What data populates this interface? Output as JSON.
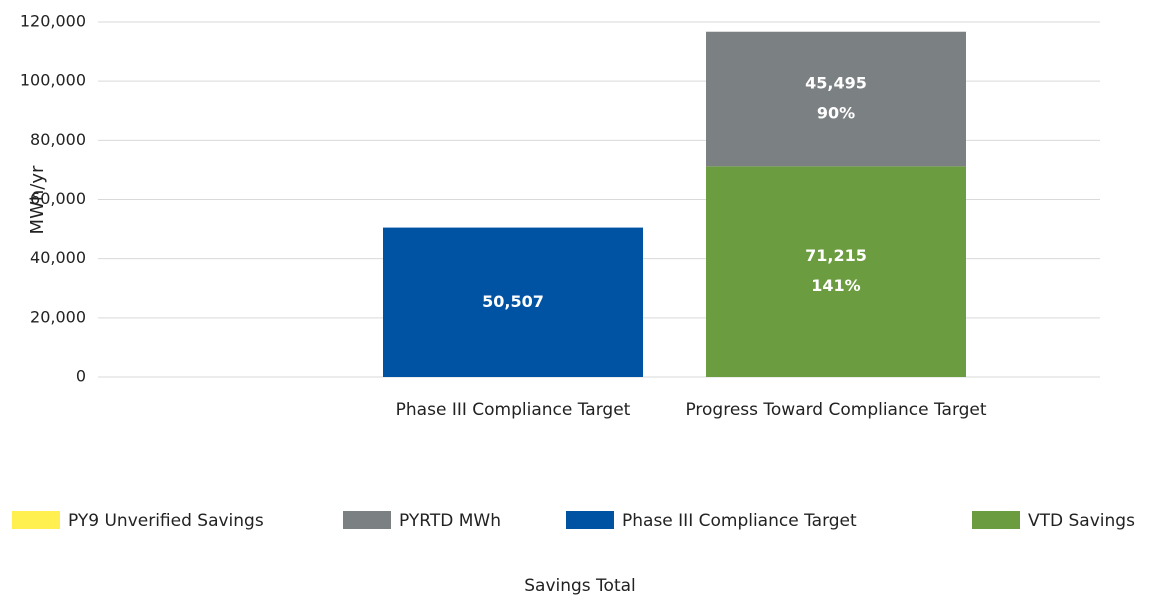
{
  "chart_data": {
    "type": "stacked_bar",
    "y_label": "MWh/yr",
    "x_label": "Savings Total",
    "categories": [
      "Phase III Compliance Target",
      "Progress Toward Compliance Target"
    ],
    "series": [
      {
        "name": "PY9 Unverified Savings",
        "color": "#ffef4f",
        "values": [
          null,
          null
        ]
      },
      {
        "name": "PYRTD MWh",
        "color": "#7b8083",
        "values": [
          null,
          45495
        ],
        "value_labels": [
          null,
          "45,495"
        ],
        "share_labels": [
          null,
          "90%"
        ]
      },
      {
        "name": "Phase III Compliance Target",
        "color": "#0052a2",
        "values": [
          50507,
          null
        ],
        "value_labels": [
          "50,507",
          null
        ]
      },
      {
        "name": "VTD Savings",
        "color": "#6c9c40",
        "values": [
          null,
          71215
        ],
        "value_labels": [
          null,
          "71,215"
        ],
        "share_labels": [
          null,
          "141%"
        ]
      }
    ],
    "ylim": [
      0,
      120000
    ],
    "yticks": [
      0,
      {
        "value": 20000,
        "label": "20,000"
      },
      {
        "value": 40000,
        "label": "40,000"
      },
      {
        "value": 60000,
        "label": "60,000"
      },
      {
        "value": 80000,
        "label": "80,000"
      },
      {
        "value": 100000,
        "label": "100,000"
      },
      {
        "value": 120000,
        "label": "120,000"
      }
    ],
    "grid": true,
    "legend": "bottom"
  }
}
